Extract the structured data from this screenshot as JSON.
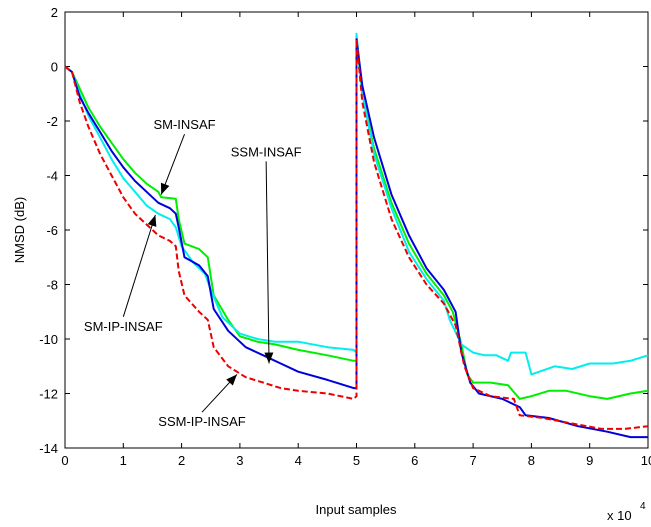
{
  "chart_data": {
    "type": "line",
    "title": "",
    "xlabel": "Input samples",
    "ylabel": "NMSD (dB)",
    "x_multiplier_label": "x 10",
    "x_multiplier_exponent": "4",
    "xlim": [
      0,
      10
    ],
    "ylim": [
      -14,
      2
    ],
    "xticks": [
      "0",
      "1",
      "2",
      "3",
      "4",
      "5",
      "6",
      "7",
      "8",
      "9",
      "10"
    ],
    "yticks": [
      "2",
      "0",
      "-2",
      "-4",
      "-6",
      "-8",
      "-10",
      "-12",
      "-14"
    ],
    "grid": false,
    "legend": "none",
    "series": [
      {
        "name": "SM-INSAF",
        "color": "#00ee00",
        "dash": "solid",
        "points": [
          [
            0,
            0
          ],
          [
            0.12,
            -0.2
          ],
          [
            0.25,
            -0.8
          ],
          [
            0.4,
            -1.5
          ],
          [
            0.6,
            -2.2
          ],
          [
            0.8,
            -2.8
          ],
          [
            1.0,
            -3.4
          ],
          [
            1.2,
            -3.9
          ],
          [
            1.4,
            -4.3
          ],
          [
            1.6,
            -4.6
          ],
          [
            1.65,
            -4.8
          ],
          [
            1.9,
            -4.85
          ],
          [
            1.95,
            -5.6
          ],
          [
            2.05,
            -6.5
          ],
          [
            2.3,
            -6.7
          ],
          [
            2.45,
            -7.0
          ],
          [
            2.55,
            -8.4
          ],
          [
            2.8,
            -9.3
          ],
          [
            3.0,
            -9.9
          ],
          [
            3.3,
            -10.1
          ],
          [
            3.6,
            -10.2
          ],
          [
            4.0,
            -10.4
          ],
          [
            4.5,
            -10.6
          ],
          [
            4.95,
            -10.8
          ],
          [
            5.0,
            -10.8
          ],
          [
            5.0,
            1.0
          ],
          [
            5.1,
            -1.0
          ],
          [
            5.3,
            -3.0
          ],
          [
            5.6,
            -5.0
          ],
          [
            5.9,
            -6.5
          ],
          [
            6.2,
            -7.6
          ],
          [
            6.5,
            -8.4
          ],
          [
            6.65,
            -9.0
          ],
          [
            6.8,
            -10.2
          ],
          [
            6.9,
            -11.3
          ],
          [
            7.0,
            -11.6
          ],
          [
            7.3,
            -11.6
          ],
          [
            7.6,
            -11.7
          ],
          [
            7.8,
            -12.2
          ],
          [
            8.0,
            -12.1
          ],
          [
            8.3,
            -11.9
          ],
          [
            8.6,
            -11.9
          ],
          [
            9.0,
            -12.1
          ],
          [
            9.3,
            -12.2
          ],
          [
            9.7,
            -12.0
          ],
          [
            10.0,
            -11.9
          ]
        ]
      },
      {
        "name": "SM-IP-INSAF",
        "color": "#00eeee",
        "dash": "solid",
        "points": [
          [
            0,
            0
          ],
          [
            0.12,
            -0.2
          ],
          [
            0.25,
            -1.0
          ],
          [
            0.4,
            -1.8
          ],
          [
            0.6,
            -2.6
          ],
          [
            0.8,
            -3.4
          ],
          [
            1.0,
            -4.1
          ],
          [
            1.2,
            -4.6
          ],
          [
            1.4,
            -5.1
          ],
          [
            1.6,
            -5.4
          ],
          [
            1.8,
            -5.6
          ],
          [
            1.9,
            -5.9
          ],
          [
            2.0,
            -6.6
          ],
          [
            2.2,
            -7.2
          ],
          [
            2.4,
            -7.6
          ],
          [
            2.5,
            -8.2
          ],
          [
            2.7,
            -9.2
          ],
          [
            3.0,
            -9.8
          ],
          [
            3.3,
            -10.0
          ],
          [
            3.6,
            -10.1
          ],
          [
            4.0,
            -10.1
          ],
          [
            4.5,
            -10.3
          ],
          [
            4.95,
            -10.4
          ],
          [
            5.0,
            -10.5
          ],
          [
            5.0,
            1.2
          ],
          [
            5.1,
            -1.0
          ],
          [
            5.3,
            -3.2
          ],
          [
            5.6,
            -5.2
          ],
          [
            5.9,
            -6.8
          ],
          [
            6.2,
            -7.8
          ],
          [
            6.5,
            -8.6
          ],
          [
            6.6,
            -9.3
          ],
          [
            6.8,
            -10.2
          ],
          [
            7.0,
            -10.5
          ],
          [
            7.2,
            -10.6
          ],
          [
            7.4,
            -10.6
          ],
          [
            7.6,
            -10.8
          ],
          [
            7.65,
            -10.5
          ],
          [
            7.9,
            -10.5
          ],
          [
            8.0,
            -11.3
          ],
          [
            8.4,
            -11.0
          ],
          [
            8.7,
            -11.1
          ],
          [
            9.0,
            -10.9
          ],
          [
            9.4,
            -10.9
          ],
          [
            9.7,
            -10.8
          ],
          [
            10.0,
            -10.6
          ]
        ]
      },
      {
        "name": "SSM-INSAF",
        "color": "#0000dd",
        "dash": "solid",
        "points": [
          [
            0,
            0
          ],
          [
            0.12,
            -0.2
          ],
          [
            0.25,
            -1.1
          ],
          [
            0.4,
            -1.7
          ],
          [
            0.6,
            -2.4
          ],
          [
            0.8,
            -3.1
          ],
          [
            1.0,
            -3.7
          ],
          [
            1.2,
            -4.2
          ],
          [
            1.4,
            -4.6
          ],
          [
            1.6,
            -5.0
          ],
          [
            1.8,
            -5.2
          ],
          [
            1.9,
            -5.4
          ],
          [
            1.95,
            -5.9
          ],
          [
            2.05,
            -7.0
          ],
          [
            2.3,
            -7.3
          ],
          [
            2.45,
            -7.7
          ],
          [
            2.55,
            -8.9
          ],
          [
            2.8,
            -9.7
          ],
          [
            3.1,
            -10.3
          ],
          [
            3.4,
            -10.6
          ],
          [
            3.7,
            -10.9
          ],
          [
            4.0,
            -11.2
          ],
          [
            4.5,
            -11.5
          ],
          [
            4.95,
            -11.8
          ],
          [
            5.0,
            -11.8
          ],
          [
            5.0,
            1.0
          ],
          [
            5.1,
            -0.7
          ],
          [
            5.3,
            -2.6
          ],
          [
            5.6,
            -4.7
          ],
          [
            5.9,
            -6.2
          ],
          [
            6.2,
            -7.4
          ],
          [
            6.5,
            -8.2
          ],
          [
            6.7,
            -9.0
          ],
          [
            6.8,
            -10.5
          ],
          [
            6.95,
            -11.6
          ],
          [
            7.1,
            -12.0
          ],
          [
            7.5,
            -12.2
          ],
          [
            7.8,
            -12.5
          ],
          [
            7.9,
            -12.8
          ],
          [
            8.3,
            -12.9
          ],
          [
            8.8,
            -13.2
          ],
          [
            9.3,
            -13.4
          ],
          [
            9.7,
            -13.6
          ],
          [
            10.0,
            -13.6
          ]
        ]
      },
      {
        "name": "SSM-IP-INSAF",
        "color": "#ee0000",
        "dash": "dashed",
        "points": [
          [
            0,
            0
          ],
          [
            0.12,
            -0.2
          ],
          [
            0.25,
            -1.3
          ],
          [
            0.4,
            -2.2
          ],
          [
            0.6,
            -3.2
          ],
          [
            0.8,
            -4.0
          ],
          [
            1.0,
            -4.8
          ],
          [
            1.2,
            -5.4
          ],
          [
            1.4,
            -5.8
          ],
          [
            1.6,
            -6.2
          ],
          [
            1.8,
            -6.4
          ],
          [
            1.9,
            -6.6
          ],
          [
            1.95,
            -7.5
          ],
          [
            2.05,
            -8.4
          ],
          [
            2.3,
            -9.0
          ],
          [
            2.45,
            -9.3
          ],
          [
            2.55,
            -10.3
          ],
          [
            2.8,
            -11.0
          ],
          [
            3.1,
            -11.4
          ],
          [
            3.4,
            -11.6
          ],
          [
            3.7,
            -11.8
          ],
          [
            4.0,
            -11.9
          ],
          [
            4.5,
            -12.0
          ],
          [
            4.95,
            -12.2
          ],
          [
            5.0,
            -12.1
          ],
          [
            5.0,
            1.0
          ],
          [
            5.1,
            -1.3
          ],
          [
            5.3,
            -3.5
          ],
          [
            5.6,
            -5.6
          ],
          [
            5.9,
            -7.0
          ],
          [
            6.2,
            -8.0
          ],
          [
            6.5,
            -8.7
          ],
          [
            6.7,
            -9.5
          ],
          [
            6.85,
            -11.0
          ],
          [
            7.0,
            -11.8
          ],
          [
            7.3,
            -12.1
          ],
          [
            7.7,
            -12.2
          ],
          [
            7.8,
            -12.8
          ],
          [
            8.2,
            -12.9
          ],
          [
            8.7,
            -13.1
          ],
          [
            9.2,
            -13.3
          ],
          [
            9.6,
            -13.3
          ],
          [
            10.0,
            -13.2
          ]
        ]
      }
    ],
    "annotations": [
      {
        "text": "SM-INSAF",
        "series": "SM-INSAF",
        "target": [
          1.65,
          -4.7
        ],
        "label_at": [
          2.05,
          -2.3
        ],
        "anchor": "middle"
      },
      {
        "text": "SSM-INSAF",
        "series": "SSM-INSAF",
        "target": [
          3.5,
          -10.9
        ],
        "label_at": [
          3.45,
          -3.3
        ],
        "anchor": "middle"
      },
      {
        "text": "SM-IP-INSAF",
        "series": "SM-IP-INSAF",
        "target": [
          1.55,
          -5.45
        ],
        "label_at": [
          1.0,
          -9.7
        ],
        "anchor": "middle"
      },
      {
        "text": "SSM-IP-INSAF",
        "series": "SSM-IP-INSAF",
        "target": [
          2.95,
          -11.3
        ],
        "label_at": [
          2.35,
          -13.2
        ],
        "anchor": "middle"
      }
    ]
  }
}
